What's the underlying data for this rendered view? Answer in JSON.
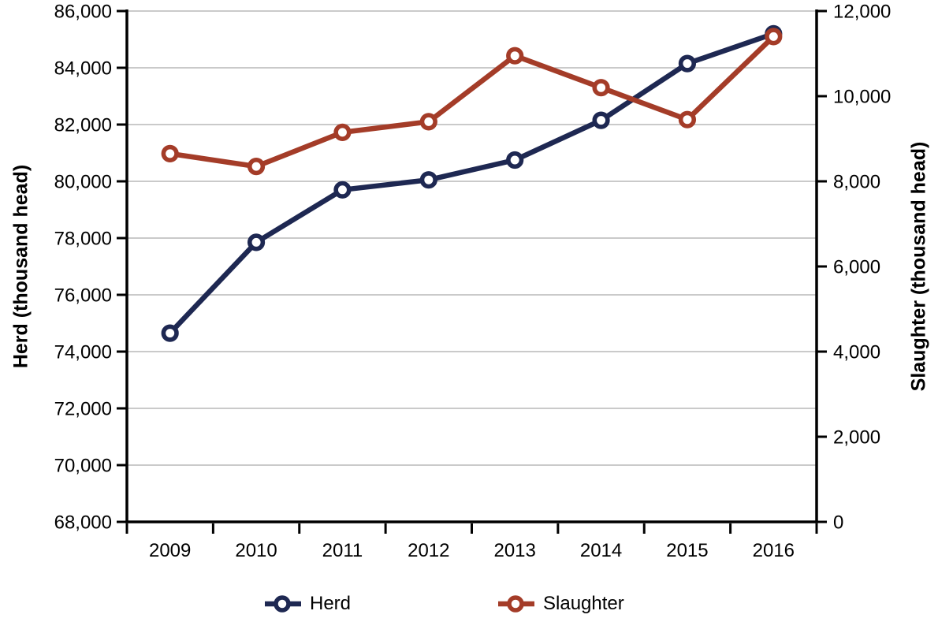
{
  "chart_data": {
    "type": "line",
    "title": "",
    "categories": [
      "2009",
      "2010",
      "2011",
      "2012",
      "2013",
      "2014",
      "2015",
      "2016"
    ],
    "series": [
      {
        "name": "Herd",
        "axis": "left",
        "color": "#1E2852",
        "marker": "open-circle",
        "values": [
          74650,
          77850,
          79700,
          80050,
          80750,
          82150,
          84150,
          85200
        ]
      },
      {
        "name": "Slaughter",
        "axis": "right",
        "color": "#A43C28",
        "marker": "open-circle",
        "values": [
          8650,
          8350,
          9150,
          9400,
          10950,
          10200,
          9450,
          11400
        ]
      }
    ],
    "xlabel": "",
    "ylabel_left": "Herd (thousand head)",
    "ylabel_right": "Slaughter (thousand head)",
    "axis_left": {
      "min": 68000,
      "max": 86000,
      "step": 2000,
      "tick_labels": [
        "86,000",
        "84,000",
        "82,000",
        "80,000",
        "78,000",
        "76,000",
        "74,000",
        "72,000",
        "70,000",
        "68,000"
      ]
    },
    "axis_right": {
      "min": 0,
      "max": 12000,
      "step": 2000,
      "tick_labels": [
        "12,000",
        "10,000",
        "8,000",
        "6,000",
        "4,000",
        "2,000",
        "0"
      ]
    },
    "grid": true,
    "legend_position": "bottom",
    "colors": {
      "background": "#FFFFFF",
      "grid": "#ABABAB",
      "axis": "#000000",
      "text": "#000000"
    }
  }
}
